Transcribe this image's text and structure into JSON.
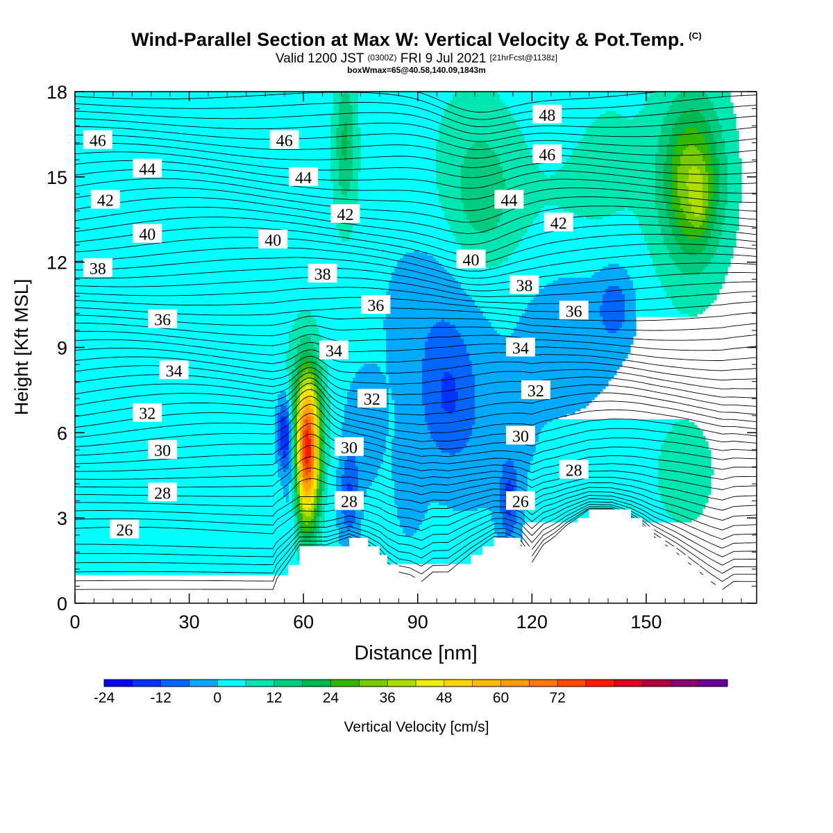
{
  "title": {
    "main": "Wind-Parallel Section at Max W: Vertical Velocity & Pot.Temp.",
    "copyright": "(C)",
    "valid_prefix": "Valid 1200 JST",
    "valid_utc": "(0300Z)",
    "valid_date": "FRI 9 Jul 2021",
    "forecast": "[21hrFcst@1138z]",
    "boxline": "boxWmax=65@40.58,140.09,1843m"
  },
  "chart_data": {
    "type": "contour",
    "xlabel": "Distance [nm]",
    "ylabel": "Height [Kft MSL]",
    "xlim": [
      0,
      179
    ],
    "ylim": [
      0,
      18
    ],
    "x_ticks": [
      0,
      30,
      60,
      90,
      120,
      150
    ],
    "y_ticks": [
      0,
      3,
      6,
      9,
      12,
      15,
      18
    ],
    "grid": false,
    "colorbar": {
      "label": "Vertical Velocity [cm/s]",
      "min": -24,
      "max": 78,
      "step": 6,
      "tick_values": [
        -24,
        -12,
        0,
        12,
        24,
        36,
        48,
        60,
        72
      ],
      "colors": [
        "#0000ff",
        "#0033ff",
        "#0066ff",
        "#00aaff",
        "#00ffff",
        "#00e6b0",
        "#00cc80",
        "#00b850",
        "#33b800",
        "#77cc00",
        "#b0dd00",
        "#eeee00",
        "#ffd500",
        "#ffbb00",
        "#ffa000",
        "#ff7a00",
        "#ff4a00",
        "#ff1a00",
        "#dd0020",
        "#b00040",
        "#8a0070",
        "#660099"
      ]
    },
    "theta_contour_labels": [
      {
        "x": 6,
        "y": 16.3,
        "label": "46"
      },
      {
        "x": 19,
        "y": 15.3,
        "label": "44"
      },
      {
        "x": 8,
        "y": 14.2,
        "label": "42"
      },
      {
        "x": 19,
        "y": 13.0,
        "label": "40"
      },
      {
        "x": 6,
        "y": 11.8,
        "label": "38"
      },
      {
        "x": 23,
        "y": 10.0,
        "label": "36"
      },
      {
        "x": 26,
        "y": 8.2,
        "label": "34"
      },
      {
        "x": 19,
        "y": 6.7,
        "label": "32"
      },
      {
        "x": 23,
        "y": 5.4,
        "label": "30"
      },
      {
        "x": 23,
        "y": 3.9,
        "label": "28"
      },
      {
        "x": 13,
        "y": 2.6,
        "label": "26"
      },
      {
        "x": 55,
        "y": 16.3,
        "label": "46"
      },
      {
        "x": 60,
        "y": 15.0,
        "label": "44"
      },
      {
        "x": 71,
        "y": 13.7,
        "label": "42"
      },
      {
        "x": 52,
        "y": 12.8,
        "label": "40"
      },
      {
        "x": 65,
        "y": 11.6,
        "label": "38"
      },
      {
        "x": 79,
        "y": 10.5,
        "label": "36"
      },
      {
        "x": 68,
        "y": 8.9,
        "label": "34"
      },
      {
        "x": 78,
        "y": 7.2,
        "label": "32"
      },
      {
        "x": 72,
        "y": 5.5,
        "label": "30"
      },
      {
        "x": 72,
        "y": 3.6,
        "label": "28"
      },
      {
        "x": 124,
        "y": 17.2,
        "label": "48"
      },
      {
        "x": 124,
        "y": 15.8,
        "label": "46"
      },
      {
        "x": 114,
        "y": 14.2,
        "label": "44"
      },
      {
        "x": 127,
        "y": 13.4,
        "label": "42"
      },
      {
        "x": 104,
        "y": 12.1,
        "label": "40"
      },
      {
        "x": 118,
        "y": 11.2,
        "label": "38"
      },
      {
        "x": 131,
        "y": 10.3,
        "label": "36"
      },
      {
        "x": 117,
        "y": 9.0,
        "label": "34"
      },
      {
        "x": 121,
        "y": 7.5,
        "label": "32"
      },
      {
        "x": 117,
        "y": 5.9,
        "label": "30"
      },
      {
        "x": 131,
        "y": 4.7,
        "label": "28"
      },
      {
        "x": 117,
        "y": 3.6,
        "label": "26"
      }
    ],
    "terrain_profile_x": [
      0,
      52,
      52.5,
      56,
      59,
      66,
      72,
      77,
      80,
      82,
      85,
      88,
      91,
      94,
      98,
      101,
      104,
      107,
      110,
      113,
      117,
      120,
      123,
      126,
      129,
      132,
      135,
      138,
      141,
      146,
      149,
      152,
      155,
      158,
      161,
      164,
      167,
      170,
      173,
      179
    ],
    "terrain_profile_height": [
      0.35,
      0.35,
      0.65,
      1.35,
      2.0,
      2.0,
      2.3,
      2.0,
      1.7,
      1.35,
      1.0,
      0.9,
      0.65,
      1.0,
      1.0,
      1.35,
      1.7,
      2.0,
      2.3,
      2.3,
      2.0,
      1.35,
      2.0,
      2.3,
      2.7,
      3.0,
      3.3,
      3.3,
      3.3,
      3.0,
      2.7,
      2.3,
      2.0,
      1.7,
      1.35,
      1.0,
      0.65,
      0.35,
      0.65,
      0.65
    ],
    "vertical_velocity_features": [
      {
        "x": 61,
        "y": 5.2,
        "sx": 2.2,
        "sy": 1.8,
        "w": 66
      },
      {
        "x": 61,
        "y": 6.5,
        "sx": 3.2,
        "sy": 1.8,
        "w": 18
      },
      {
        "x": 55,
        "y": 6.0,
        "sx": 1.4,
        "sy": 0.9,
        "w": -22
      },
      {
        "x": 57,
        "y": 4.8,
        "sx": 1.4,
        "sy": 1.3,
        "w": -12
      },
      {
        "x": 72,
        "y": 3.8,
        "sx": 1.7,
        "sy": 1.1,
        "w": -14
      },
      {
        "x": 114,
        "y": 3.6,
        "sx": 1.7,
        "sy": 1.0,
        "w": -15
      },
      {
        "x": 98,
        "y": 7.2,
        "sx": 5.2,
        "sy": 1.6,
        "w": -11
      },
      {
        "x": 96,
        "y": 10.2,
        "sx": 9,
        "sy": 2.2,
        "w": -6
      },
      {
        "x": 130,
        "y": 9.8,
        "sx": 9,
        "sy": 1.8,
        "w": -6
      },
      {
        "x": 142,
        "y": 10.5,
        "sx": 3.2,
        "sy": 0.9,
        "w": -10
      },
      {
        "x": 108,
        "y": 5.6,
        "sx": 10,
        "sy": 1.8,
        "w": -3
      },
      {
        "x": 162,
        "y": 14.8,
        "sx": 5.2,
        "sy": 1.8,
        "w": 26
      },
      {
        "x": 164,
        "y": 14.0,
        "sx": 1.4,
        "sy": 0.7,
        "w": 8
      },
      {
        "x": 162,
        "y": 15.0,
        "sx": 9,
        "sy": 3.5,
        "w": 9
      },
      {
        "x": 107,
        "y": 14.2,
        "sx": 6.2,
        "sy": 1.8,
        "w": 9
      },
      {
        "x": 104,
        "y": 15.5,
        "sx": 10,
        "sy": 3.0,
        "w": 6
      },
      {
        "x": 71,
        "y": 16.3,
        "sx": 1.8,
        "sy": 1.5,
        "w": 12
      },
      {
        "x": 71,
        "y": 15.5,
        "sx": 3.5,
        "sy": 3.0,
        "w": 6
      },
      {
        "x": 52,
        "y": 10.2,
        "sx": 7,
        "sy": 2.2,
        "w": 3
      },
      {
        "x": 160,
        "y": 4.5,
        "sx": 9,
        "sy": 2.2,
        "w": 6
      },
      {
        "x": 46,
        "y": 5.0,
        "sx": 5.2,
        "sy": 1.8,
        "w": 3
      },
      {
        "x": 10,
        "y": 2.8,
        "sx": 10,
        "sy": 1.1,
        "w": 3
      },
      {
        "x": 16,
        "y": 16.0,
        "sx": 3.5,
        "sy": 1.5,
        "w": 2.5
      },
      {
        "x": 26,
        "y": 12.8,
        "sx": 3.5,
        "sy": 1.2,
        "w": 2.5
      },
      {
        "x": 128,
        "y": 14.0,
        "sx": 10,
        "sy": 2.2,
        "w": 4
      },
      {
        "x": 140,
        "y": 16.0,
        "sx": 7,
        "sy": 2.5,
        "w": 4
      },
      {
        "x": 176,
        "y": 6.0,
        "sx": 3.5,
        "sy": 2.2,
        "w": 3
      },
      {
        "x": 88,
        "y": 4.4,
        "sx": 2.5,
        "sy": 1.2,
        "w": -6
      },
      {
        "x": 76,
        "y": 6.2,
        "sx": 3.0,
        "sy": 1.2,
        "w": -7
      }
    ]
  }
}
